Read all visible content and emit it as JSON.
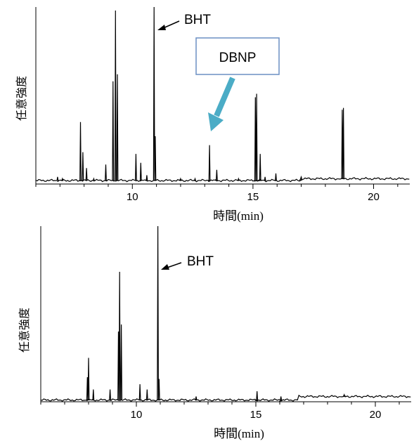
{
  "chart_data": [
    {
      "type": "line",
      "xlabel": "時間(min)",
      "ylabel": "任意強度",
      "xlim": [
        6.0,
        21.5
      ],
      "ylim": [
        0,
        100
      ],
      "x_ticks": [
        10,
        15,
        20
      ],
      "baseline": 2,
      "series": [
        {
          "peaks": [
            {
              "x": 6.9,
              "y": 4
            },
            {
              "x": 7.1,
              "y": 3
            },
            {
              "x": 7.85,
              "y": 35
            },
            {
              "x": 7.95,
              "y": 18
            },
            {
              "x": 8.1,
              "y": 9
            },
            {
              "x": 8.4,
              "y": 3
            },
            {
              "x": 8.9,
              "y": 11
            },
            {
              "x": 9.2,
              "y": 58
            },
            {
              "x": 9.3,
              "y": 98
            },
            {
              "x": 9.38,
              "y": 62
            },
            {
              "x": 10.15,
              "y": 17
            },
            {
              "x": 10.35,
              "y": 12
            },
            {
              "x": 10.6,
              "y": 5
            },
            {
              "x": 10.9,
              "y": 100
            },
            {
              "x": 10.95,
              "y": 27
            },
            {
              "x": 12.0,
              "y": 3
            },
            {
              "x": 12.6,
              "y": 3
            },
            {
              "x": 13.2,
              "y": 22
            },
            {
              "x": 13.5,
              "y": 8
            },
            {
              "x": 14.4,
              "y": 3
            },
            {
              "x": 15.1,
              "y": 49
            },
            {
              "x": 15.15,
              "y": 51
            },
            {
              "x": 15.3,
              "y": 17
            },
            {
              "x": 15.5,
              "y": 4
            },
            {
              "x": 15.95,
              "y": 6
            },
            {
              "x": 17.0,
              "y": 4
            },
            {
              "x": 18.7,
              "y": 42
            },
            {
              "x": 18.75,
              "y": 43
            }
          ],
          "shift_after": {
            "x": 17.0,
            "level": 1
          }
        }
      ],
      "annotations": [
        "BHT",
        "DBNP"
      ]
    },
    {
      "type": "line",
      "xlabel": "時間(min)",
      "ylabel": "任意強度",
      "xlim": [
        6.0,
        21.5
      ],
      "ylim": [
        0,
        100
      ],
      "x_ticks": [
        10,
        15,
        20
      ],
      "baseline": 1,
      "series": [
        {
          "peaks": [
            {
              "x": 7.95,
              "y": 14
            },
            {
              "x": 8.0,
              "y": 25
            },
            {
              "x": 8.2,
              "y": 7
            },
            {
              "x": 8.9,
              "y": 7
            },
            {
              "x": 9.25,
              "y": 40
            },
            {
              "x": 9.3,
              "y": 74
            },
            {
              "x": 9.37,
              "y": 44
            },
            {
              "x": 10.15,
              "y": 10
            },
            {
              "x": 10.45,
              "y": 7
            },
            {
              "x": 10.9,
              "y": 100
            },
            {
              "x": 10.95,
              "y": 13
            },
            {
              "x": 12.5,
              "y": 3
            },
            {
              "x": 15.05,
              "y": 6
            },
            {
              "x": 16.05,
              "y": 3
            },
            {
              "x": 18.7,
              "y": 4
            }
          ],
          "shift_after": {
            "x": 16.8,
            "level": 2
          }
        }
      ],
      "annotations": [
        "BHT"
      ]
    }
  ]
}
